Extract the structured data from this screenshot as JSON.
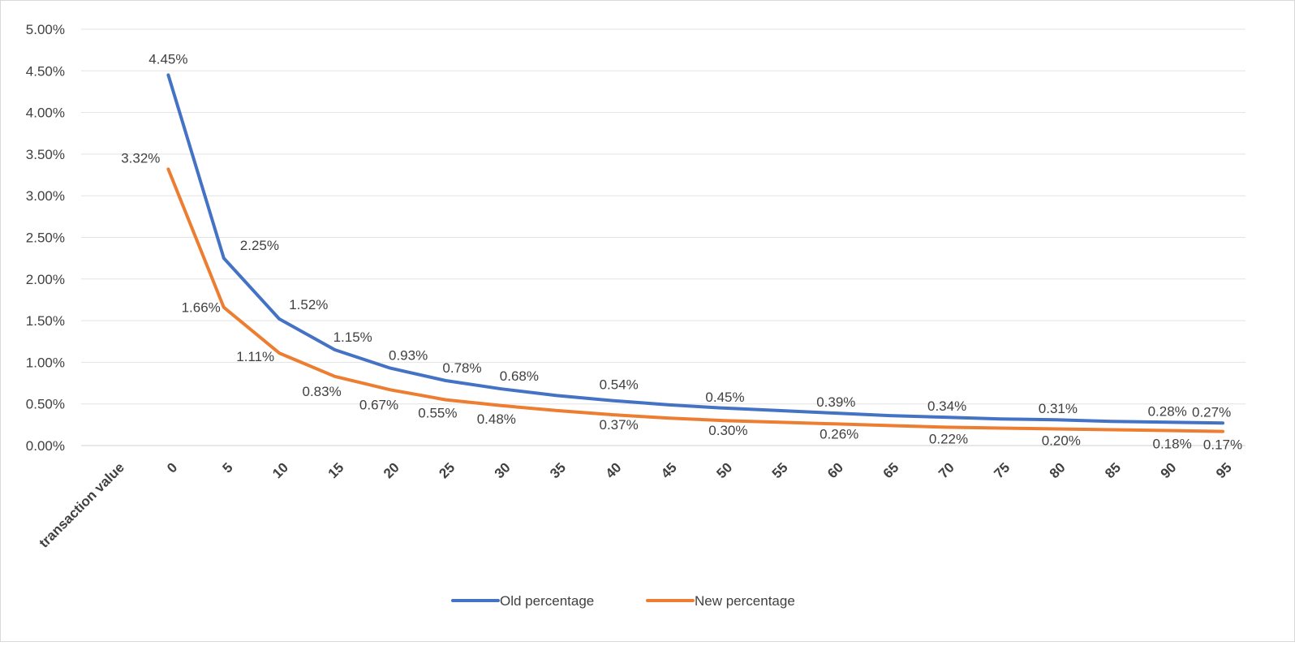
{
  "chart_data": {
    "type": "line",
    "title": "",
    "xlabel": "",
    "ylabel": "",
    "first_category_label": "transaction value",
    "categories": [
      "0",
      "5",
      "10",
      "15",
      "20",
      "25",
      "30",
      "35",
      "40",
      "45",
      "50",
      "55",
      "60",
      "65",
      "70",
      "75",
      "80",
      "85",
      "90",
      "95"
    ],
    "x_values": [
      0,
      5,
      10,
      15,
      20,
      25,
      30,
      35,
      40,
      45,
      50,
      55,
      60,
      65,
      70,
      75,
      80,
      85,
      90,
      95
    ],
    "ylim": [
      0,
      5
    ],
    "y_ticks": [
      "0.00%",
      "0.50%",
      "1.00%",
      "1.50%",
      "2.00%",
      "2.50%",
      "3.00%",
      "3.50%",
      "4.00%",
      "4.50%",
      "5.00%"
    ],
    "grid": true,
    "legend_position": "bottom",
    "series": [
      {
        "name": "Old percentage",
        "color": "#4472C4",
        "values": [
          4.45,
          2.25,
          1.52,
          1.15,
          0.93,
          0.78,
          0.68,
          0.6,
          0.54,
          0.49,
          0.45,
          0.42,
          0.39,
          0.36,
          0.34,
          0.32,
          0.31,
          0.29,
          0.28,
          0.27
        ],
        "labels": [
          "4.45%",
          "2.25%",
          "1.52%",
          "1.15%",
          "0.93%",
          "0.78%",
          "0.68%",
          "",
          "0.54%",
          "",
          "0.45%",
          "",
          "0.39%",
          "",
          "0.34%",
          "",
          "0.31%",
          "",
          "0.28%",
          "0.27%"
        ]
      },
      {
        "name": "New percentage",
        "color": "#ED7D31",
        "values": [
          3.32,
          1.66,
          1.11,
          0.83,
          0.67,
          0.55,
          0.48,
          0.42,
          0.37,
          0.33,
          0.3,
          0.28,
          0.26,
          0.24,
          0.22,
          0.21,
          0.2,
          0.19,
          0.18,
          0.17
        ],
        "labels": [
          "3.32%",
          "1.66%",
          "1.11%",
          "0.83%",
          "0.67%",
          "0.55%",
          "0.48%",
          "",
          "0.37%",
          "",
          "0.30%",
          "",
          "0.26%",
          "",
          "0.22%",
          "",
          "0.20%",
          "",
          "0.18%",
          "0.17%"
        ]
      }
    ]
  }
}
